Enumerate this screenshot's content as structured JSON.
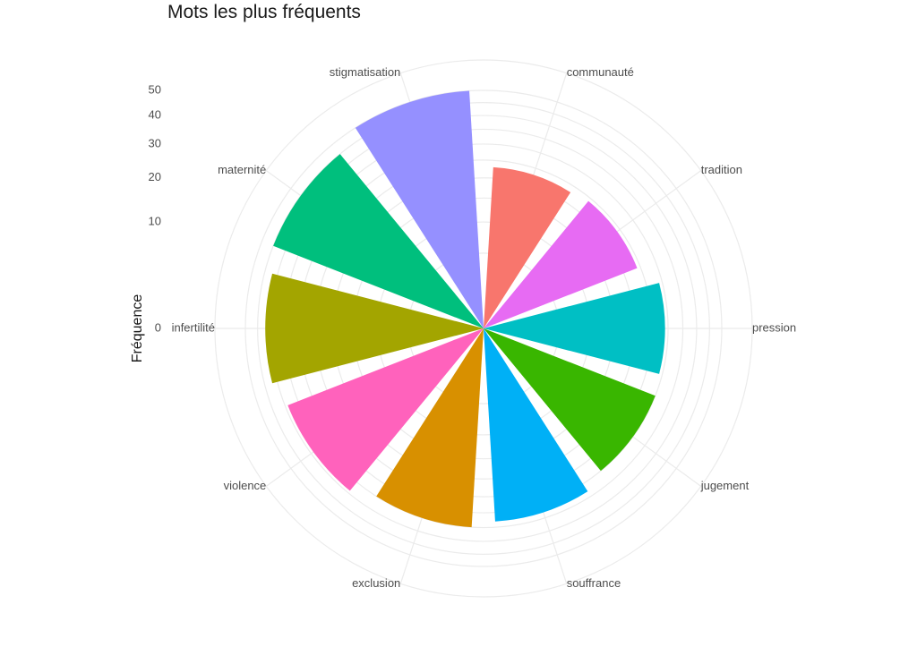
{
  "chart_data": {
    "type": "bar",
    "coord": "polar",
    "title": "Mots les plus fréquents",
    "ylabel": "Fréquence",
    "xlabel": "",
    "ylim": [
      0,
      50
    ],
    "y_ticks": [
      0,
      10,
      20,
      30,
      40,
      50
    ],
    "grid": true,
    "legend": "none",
    "categories": [
      "communauté",
      "tradition",
      "pression",
      "jugement",
      "souffrance",
      "exclusion",
      "violence",
      "infertilité",
      "maternité",
      "stigmatisation"
    ],
    "values": [
      23,
      24,
      29,
      30,
      33,
      35,
      39,
      42,
      45,
      50
    ],
    "colors": [
      "#F8766D",
      "#E76BF3",
      "#00BFC4",
      "#39B600",
      "#00B0F6",
      "#D89000",
      "#FF62BC",
      "#A3A500",
      "#00BF7D",
      "#9590FF"
    ]
  }
}
